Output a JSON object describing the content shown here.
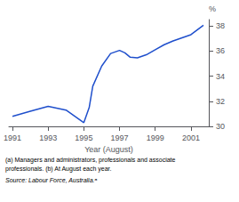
{
  "chart_data": {
    "type": "line",
    "x": [
      1991,
      1992,
      1993,
      1994,
      1995,
      1995.3,
      1995.5,
      1996,
      1996.5,
      1997,
      1997.3,
      1997.6,
      1998,
      1998.5,
      1999,
      1999.5,
      2000,
      2000.5,
      2001,
      2001.7
    ],
    "values": [
      30.8,
      31.2,
      31.6,
      31.3,
      30.3,
      31.5,
      33.2,
      34.8,
      35.8,
      36.05,
      35.85,
      35.5,
      35.45,
      35.7,
      36.1,
      36.5,
      36.8,
      37.05,
      37.3,
      38.05
    ],
    "color": "#1f4fcc",
    "xlim": [
      1990.8,
      2002.0
    ],
    "ylim": [
      30,
      38.5
    ],
    "xticks": [
      1991,
      1993,
      1995,
      1997,
      1999,
      2001
    ],
    "yticks": [
      30,
      32,
      34,
      36,
      38
    ],
    "xlabel": "Year (August)",
    "ylabel": "%",
    "annotations": [
      "(a) Managers and administrators, professionals and associate",
      "professionals. (b) At August each year.",
      "Source: Labour Force, Australia.ᵃ"
    ],
    "grid": false
  }
}
